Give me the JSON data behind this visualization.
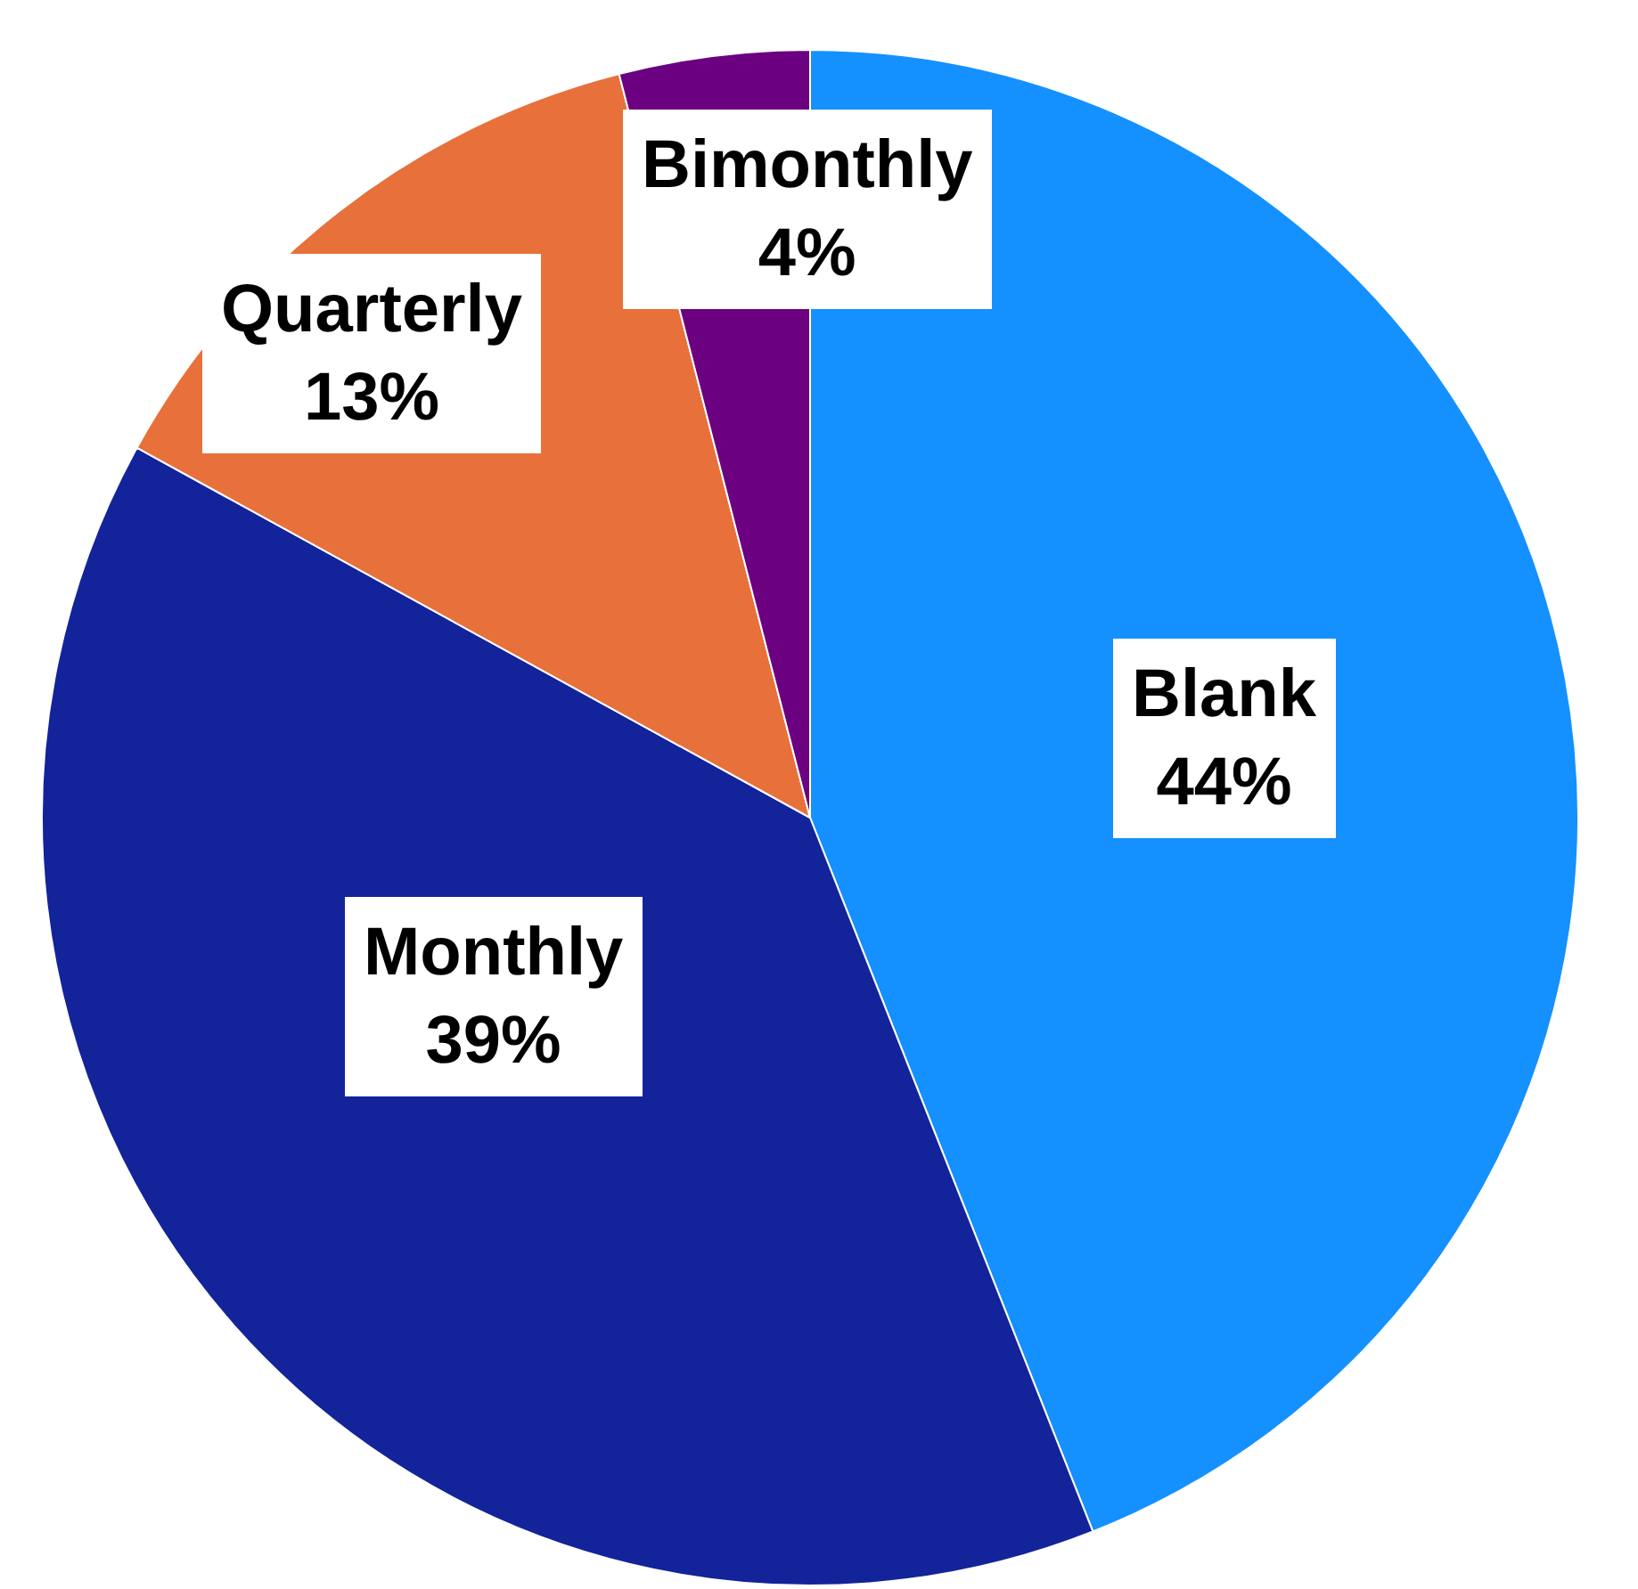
{
  "chart_data": {
    "type": "pie",
    "categories": [
      "Blank",
      "Monthly",
      "Quarterly",
      "Bimonthly"
    ],
    "values": [
      44,
      39,
      13,
      4
    ],
    "value_labels": [
      "44%",
      "39%",
      "13%",
      "4%"
    ],
    "colors": [
      "#1590ff",
      "#13239a",
      "#e8703a",
      "#6b0080"
    ],
    "legend": false
  }
}
